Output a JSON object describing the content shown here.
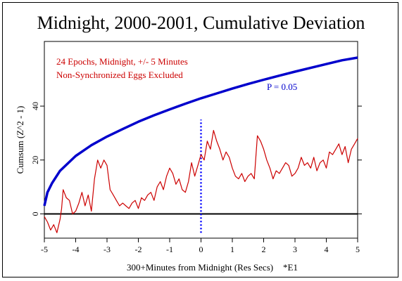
{
  "chart_data": {
    "type": "line",
    "title": "Midnight, 2000-2001, Cumulative Deviation",
    "xlabel": "300+Minutes from Midnight (Res Secs)",
    "xlabel_suffix": "*E1",
    "ylabel": "Cumsum (Z^2 - 1)",
    "xlim": [
      -5,
      5
    ],
    "ylim": [
      -9,
      64
    ],
    "xticks": [
      -5,
      -4,
      -3,
      -2,
      -1,
      0,
      1,
      2,
      3,
      4,
      5
    ],
    "yticks": [
      0,
      20,
      40
    ],
    "grid": false,
    "annotations": [
      {
        "text": "24 Epochs, Midnight, +/- 5 Minutes",
        "color": "#cc0000"
      },
      {
        "text": "Non-Synchronized Eggs Excluded",
        "color": "#cc0000"
      },
      {
        "text": "P = 0.05",
        "color": "#0000cc",
        "x": 2.1,
        "y": 46
      }
    ],
    "reference_lines": [
      {
        "orientation": "horizontal",
        "y": 0,
        "color": "#000000",
        "style": "solid"
      },
      {
        "orientation": "vertical",
        "x": 0,
        "color": "#0000ff",
        "style": "dotted",
        "y_range": [
          -7,
          35
        ]
      }
    ],
    "series": [
      {
        "color": "#cc0000",
        "x": [
          -5.0,
          -4.9,
          -4.8,
          -4.7,
          -4.6,
          -4.5,
          -4.45,
          -4.4,
          -4.3,
          -4.2,
          -4.1,
          -4.0,
          -3.9,
          -3.8,
          -3.7,
          -3.6,
          -3.5,
          -3.4,
          -3.3,
          -3.2,
          -3.1,
          -3.0,
          -2.9,
          -2.8,
          -2.7,
          -2.6,
          -2.5,
          -2.4,
          -2.3,
          -2.2,
          -2.1,
          -2.0,
          -1.9,
          -1.8,
          -1.7,
          -1.6,
          -1.5,
          -1.4,
          -1.3,
          -1.2,
          -1.1,
          -1.0,
          -0.9,
          -0.8,
          -0.7,
          -0.6,
          -0.5,
          -0.4,
          -0.3,
          -0.2,
          -0.1,
          0.0,
          0.1,
          0.2,
          0.3,
          0.4,
          0.5,
          0.6,
          0.7,
          0.8,
          0.9,
          1.0,
          1.1,
          1.2,
          1.3,
          1.4,
          1.5,
          1.6,
          1.7,
          1.8,
          1.9,
          2.0,
          2.1,
          2.2,
          2.3,
          2.4,
          2.5,
          2.6,
          2.7,
          2.8,
          2.9,
          3.0,
          3.1,
          3.2,
          3.3,
          3.4,
          3.5,
          3.6,
          3.7,
          3.8,
          3.9,
          4.0,
          4.1,
          4.2,
          4.3,
          4.4,
          4.5,
          4.6,
          4.7,
          4.8,
          4.9,
          5.0
        ],
        "y": [
          -1,
          -3,
          -6,
          -4,
          -7,
          -2,
          2,
          9,
          6,
          5,
          0,
          1,
          4,
          8,
          3,
          7,
          1,
          13,
          20,
          17,
          20,
          18,
          9,
          7,
          5,
          3,
          4,
          3,
          2,
          4,
          5,
          2,
          6,
          5,
          7,
          8,
          5,
          10,
          12,
          9,
          14,
          17,
          15,
          11,
          13,
          9,
          8,
          12,
          19,
          14,
          18,
          22,
          20,
          27,
          24,
          31,
          27,
          24,
          20,
          23,
          21,
          17,
          14,
          13,
          15,
          12,
          14,
          15,
          13,
          29,
          27,
          24,
          20,
          17,
          13,
          16,
          15,
          17,
          19,
          18,
          14,
          15,
          17,
          21,
          18,
          19,
          17,
          21,
          16,
          19,
          20,
          17,
          23,
          22,
          24,
          26,
          22,
          25,
          19,
          24,
          26,
          28
        ]
      },
      {
        "name": "P = 0.05",
        "color": "#0000cc",
        "kind": "envelope",
        "x": [
          -5.0,
          -4.9,
          -4.75,
          -4.5,
          -4.0,
          -3.5,
          -3.0,
          -2.5,
          -2.0,
          -1.5,
          -1.0,
          -0.5,
          0.0,
          0.5,
          1.0,
          1.5,
          2.0,
          2.5,
          3.0,
          3.5,
          4.0,
          4.5,
          5.0
        ],
        "y": [
          3,
          8,
          11.5,
          16,
          21.5,
          25.5,
          28.7,
          31.5,
          34.2,
          36.6,
          38.8,
          40.9,
          42.9,
          44.7,
          46.5,
          48.2,
          49.8,
          51.3,
          52.8,
          54.2,
          55.6,
          57,
          58
        ]
      }
    ]
  }
}
